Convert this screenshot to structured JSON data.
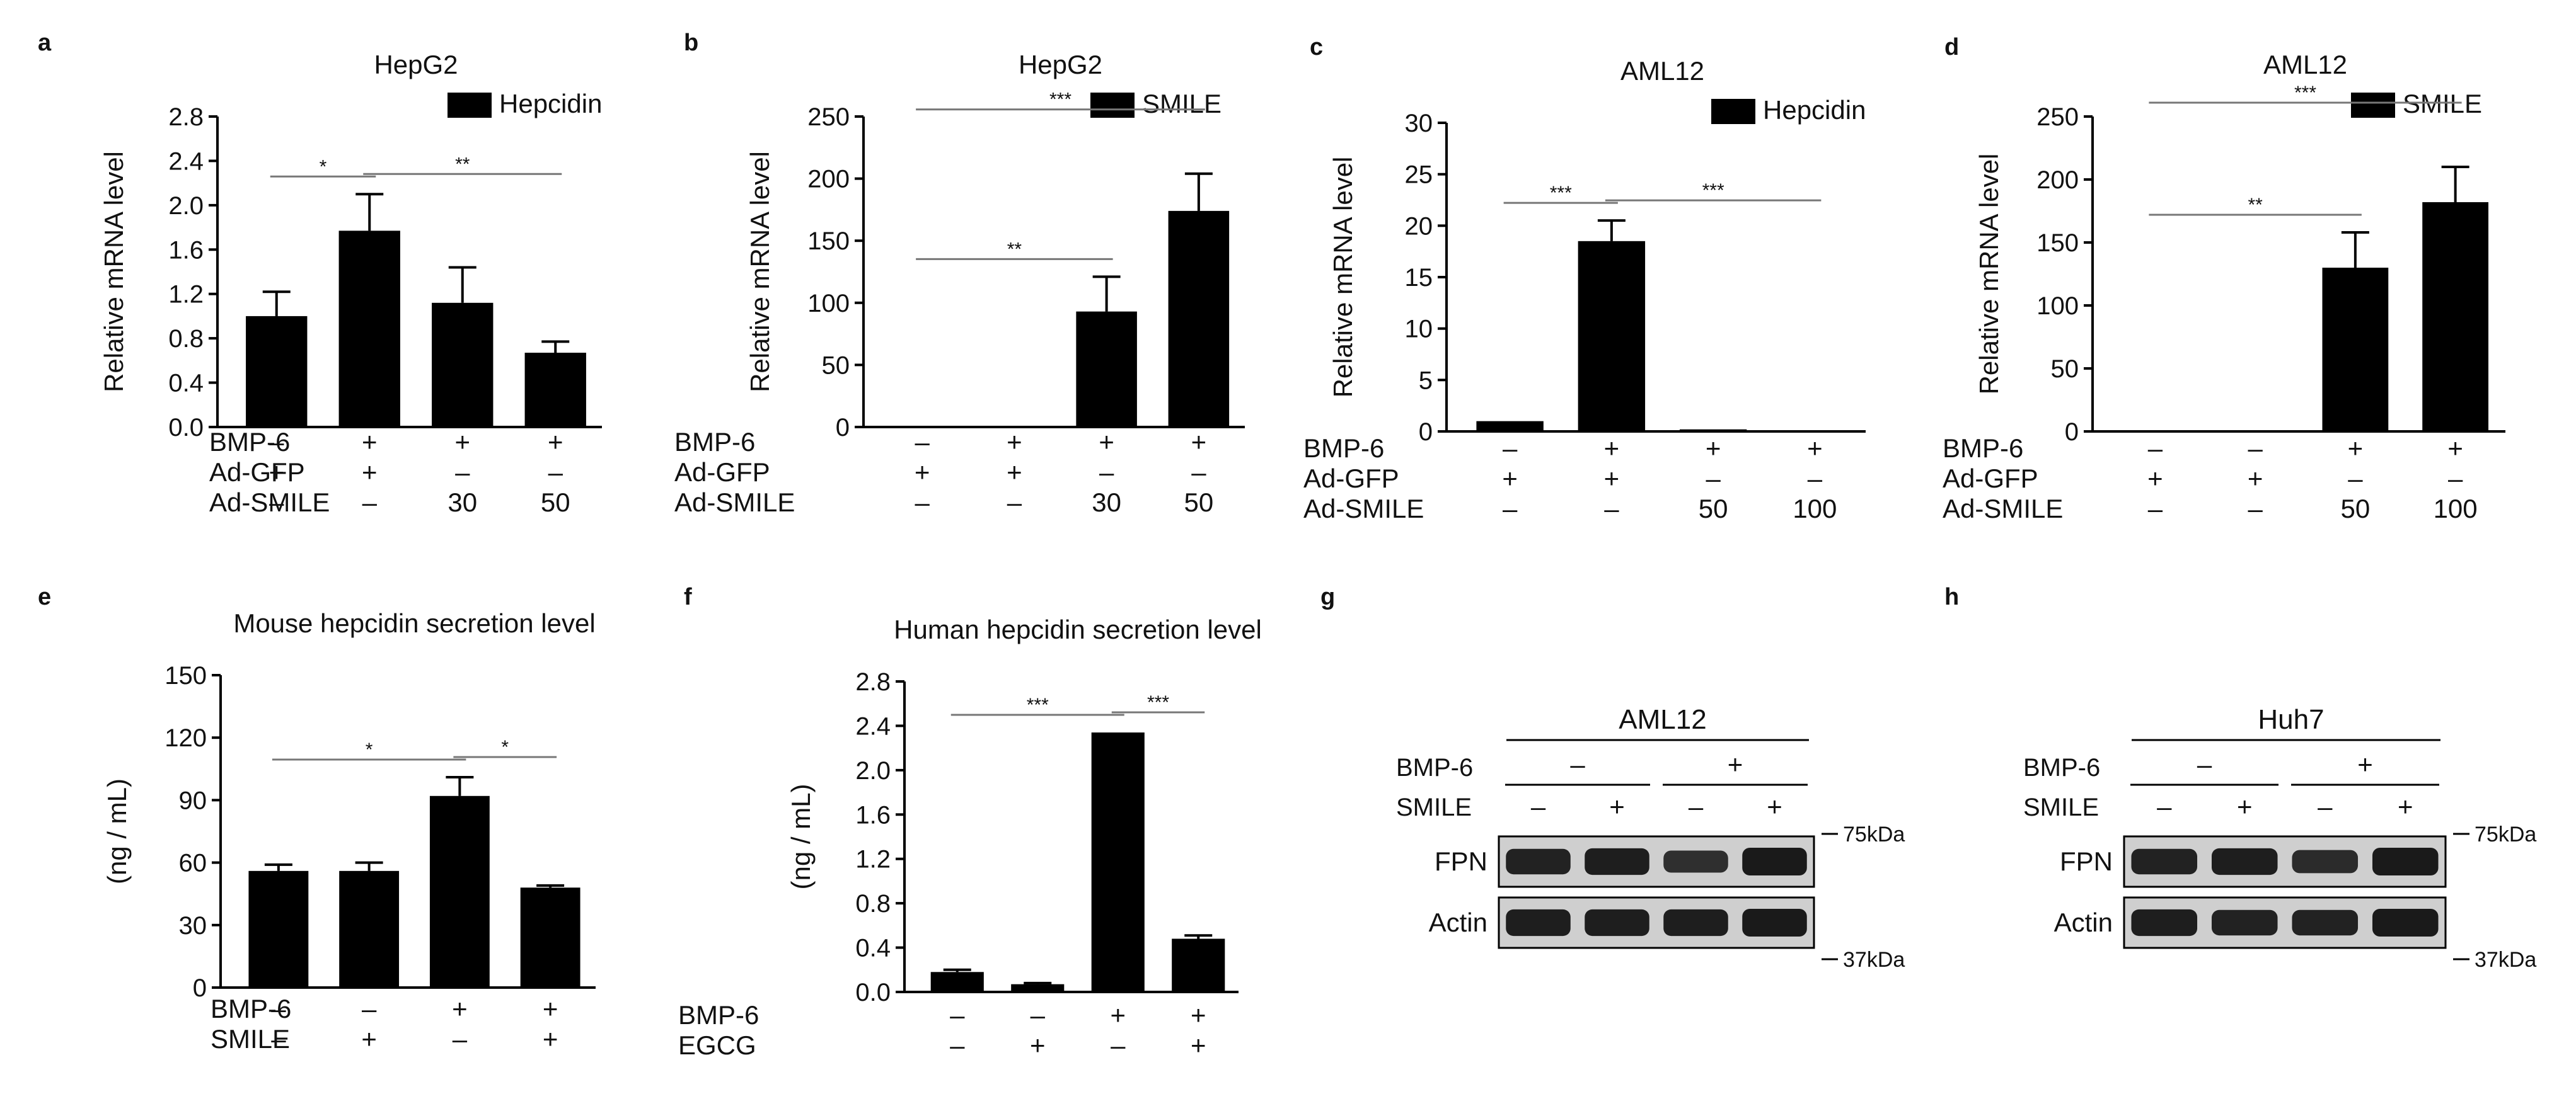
{
  "chart_data": [
    {
      "panel": "a",
      "type": "bar",
      "title": "HepG2",
      "ylabel": "Relative mRNA level",
      "legend": "Hepcidin",
      "legend_position": "top-right",
      "ylim": [
        0,
        2.8
      ],
      "yticks": [
        "0.0",
        "0.4",
        "0.8",
        "1.2",
        "1.6",
        "2.0",
        "2.4",
        "2.8"
      ],
      "values": [
        1.0,
        1.77,
        1.12,
        0.67
      ],
      "errors": [
        0.22,
        0.33,
        0.32,
        0.1
      ],
      "conditions": [
        {
          "label": "BMP-6",
          "values": [
            "–",
            "+",
            "+",
            "+"
          ]
        },
        {
          "label": "Ad-GFP",
          "values": [
            "+",
            "+",
            "–",
            "–"
          ]
        },
        {
          "label": "Ad-SMILE",
          "values": [
            "–",
            "–",
            "30",
            "50"
          ]
        }
      ],
      "significance": [
        {
          "from": 0,
          "to": 1,
          "label": "*"
        },
        {
          "from": 1,
          "to": 3,
          "label": "**"
        }
      ]
    },
    {
      "panel": "b",
      "type": "bar",
      "title": "HepG2",
      "ylabel": "Relative mRNA level",
      "legend": "SMILE",
      "legend_position": "top-right",
      "ylim": [
        0,
        250
      ],
      "yticks": [
        "0",
        "50",
        "100",
        "150",
        "200",
        "250"
      ],
      "values": [
        1,
        1,
        93,
        174
      ],
      "errors": [
        0,
        0,
        28,
        30
      ],
      "conditions": [
        {
          "label": "BMP-6",
          "values": [
            "–",
            "+",
            "+",
            "+"
          ]
        },
        {
          "label": "Ad-GFP",
          "values": [
            "+",
            "+",
            "–",
            "–"
          ]
        },
        {
          "label": "Ad-SMILE",
          "values": [
            "–",
            "–",
            "30",
            "50"
          ]
        }
      ],
      "significance": [
        {
          "from": 0,
          "to": 2,
          "label": "**"
        },
        {
          "from": 0,
          "to": 3,
          "label": "***"
        }
      ]
    },
    {
      "panel": "c",
      "type": "bar",
      "title": "AML12",
      "ylabel": "Relative mRNA level",
      "legend": "Hepcidin",
      "legend_position": "top-right",
      "ylim": [
        0,
        30
      ],
      "yticks": [
        "0",
        "5",
        "10",
        "15",
        "20",
        "25",
        "30"
      ],
      "values": [
        1.0,
        18.5,
        0.2,
        0.05
      ],
      "errors": [
        0,
        2.0,
        0,
        0
      ],
      "conditions": [
        {
          "label": "BMP-6",
          "values": [
            "–",
            "+",
            "+",
            "+"
          ]
        },
        {
          "label": "Ad-GFP",
          "values": [
            "+",
            "+",
            "–",
            "–"
          ]
        },
        {
          "label": "Ad-SMILE",
          "values": [
            "–",
            "–",
            "50",
            "100"
          ]
        }
      ],
      "significance": [
        {
          "from": 0,
          "to": 1,
          "label": "***"
        },
        {
          "from": 1,
          "to": 3,
          "label": "***"
        }
      ]
    },
    {
      "panel": "d",
      "type": "bar",
      "title": "AML12",
      "ylabel": "Relative mRNA level",
      "legend": "SMILE",
      "legend_position": "top-right",
      "ylim": [
        0,
        250
      ],
      "yticks": [
        "0",
        "50",
        "100",
        "150",
        "200",
        "250"
      ],
      "values": [
        1,
        1,
        130,
        182
      ],
      "errors": [
        0,
        0,
        28,
        28
      ],
      "conditions": [
        {
          "label": "BMP-6",
          "values": [
            "–",
            "–",
            "+",
            "+"
          ]
        },
        {
          "label": "Ad-GFP",
          "values": [
            "+",
            "+",
            "–",
            "–"
          ]
        },
        {
          "label": "Ad-SMILE",
          "values": [
            "–",
            "–",
            "50",
            "100"
          ]
        }
      ],
      "significance": [
        {
          "from": 0,
          "to": 2,
          "label": "**"
        },
        {
          "from": 0,
          "to": 3,
          "label": "***"
        }
      ]
    },
    {
      "panel": "e",
      "type": "bar",
      "title": "Mouse hepcidin secretion level",
      "ylabel": "(ng / mL)",
      "legend": "",
      "ylim": [
        0,
        150
      ],
      "yticks": [
        "0",
        "30",
        "60",
        "90",
        "120",
        "150"
      ],
      "values": [
        56,
        56,
        92,
        48
      ],
      "errors": [
        3,
        4,
        9,
        1
      ],
      "conditions": [
        {
          "label": "BMP-6",
          "values": [
            "–",
            "–",
            "+",
            "+"
          ]
        },
        {
          "label": "SMILE",
          "values": [
            "–",
            "+",
            "–",
            "+"
          ]
        }
      ],
      "significance": [
        {
          "from": 0,
          "to": 2,
          "label": "*"
        },
        {
          "from": 2,
          "to": 3,
          "label": "*"
        }
      ]
    },
    {
      "panel": "f",
      "type": "bar",
      "title": "Human hepcidin secretion level",
      "ylabel": "(ng / mL)",
      "legend": "",
      "ylim": [
        0,
        2.8
      ],
      "yticks": [
        "0.0",
        "0.4",
        "0.8",
        "1.2",
        "1.6",
        "2.0",
        "2.4",
        "2.8"
      ],
      "values": [
        0.18,
        0.07,
        2.34,
        0.48
      ],
      "errors": [
        0.02,
        0.01,
        0,
        0.03
      ],
      "conditions": [
        {
          "label": "BMP-6",
          "values": [
            "–",
            "–",
            "+",
            "+"
          ]
        },
        {
          "label": "EGCG",
          "values": [
            "–",
            "+",
            "–",
            "+"
          ]
        }
      ],
      "significance": [
        {
          "from": 0,
          "to": 2,
          "label": "***"
        },
        {
          "from": 2,
          "to": 3,
          "label": "***"
        }
      ]
    }
  ],
  "blots": [
    {
      "panel": "g",
      "title": "AML12",
      "conditions": [
        {
          "label": "BMP-6",
          "groups": [
            "–",
            "+"
          ]
        },
        {
          "label": "SMILE",
          "values": [
            "–",
            "+",
            "–",
            "+"
          ]
        }
      ],
      "rows": [
        {
          "label": "FPN",
          "marker": "75kDa"
        },
        {
          "label": "Actin",
          "marker": "37kDa"
        }
      ],
      "fpn_intensity": [
        0.9,
        0.95,
        0.75,
        1.0
      ],
      "actin_intensity": [
        0.95,
        0.95,
        0.95,
        1.0
      ]
    },
    {
      "panel": "h",
      "title": "Huh7",
      "conditions": [
        {
          "label": "BMP-6",
          "groups": [
            "–",
            "+"
          ]
        },
        {
          "label": "SMILE",
          "values": [
            "–",
            "+",
            "–",
            "+"
          ]
        }
      ],
      "rows": [
        {
          "label": "FPN",
          "marker": "75kDa"
        },
        {
          "label": "Actin",
          "marker": "37kDa"
        }
      ],
      "fpn_intensity": [
        0.9,
        0.95,
        0.8,
        1.0
      ],
      "actin_intensity": [
        0.95,
        0.9,
        0.9,
        1.0
      ]
    }
  ],
  "colors": {
    "bar": "#000000",
    "axis": "#000000",
    "bracket": "#777777",
    "blot_band": "#1a1a1a",
    "blot_bg": "#cfcfcf"
  }
}
